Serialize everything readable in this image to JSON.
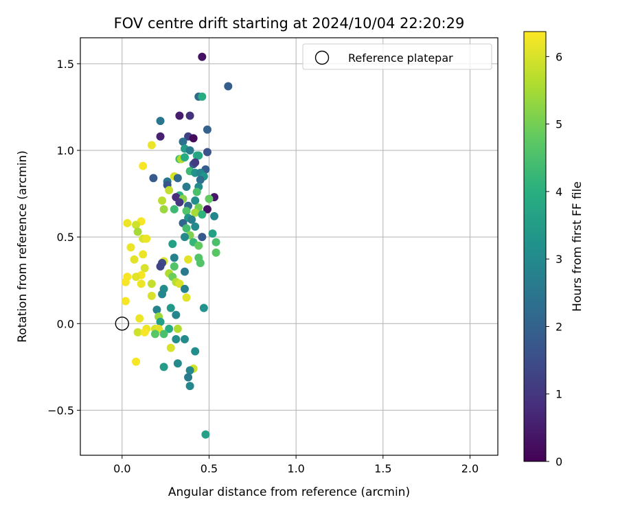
{
  "chart_data": {
    "type": "scatter",
    "title": "FOV centre drift starting at 2024/10/04 22:20:29",
    "xlabel": "Angular distance from reference (arcmin)",
    "ylabel": "Rotation from reference (arcmin)",
    "xlim": [
      -0.24,
      2.16
    ],
    "ylim": [
      -0.76,
      1.65
    ],
    "xticks": [
      0.0,
      0.5,
      1.0,
      1.5,
      2.0
    ],
    "xtick_labels": [
      "0.0",
      "0.5",
      "1.0",
      "1.5",
      "2.0"
    ],
    "yticks": [
      -0.5,
      0.0,
      0.5,
      1.0,
      1.5
    ],
    "ytick_labels": [
      "−0.5",
      "0.0",
      "0.5",
      "1.0",
      "1.5"
    ],
    "grid": true,
    "legend": {
      "placement": "top-right",
      "entries": [
        "Reference platepar"
      ]
    },
    "reference_point": {
      "x": 0.0,
      "y": 0.0,
      "label": "Reference platepar"
    },
    "colorbar": {
      "label": "Hours from first FF file",
      "colormap": "viridis",
      "range": [
        0,
        6.37
      ],
      "ticks": [
        0,
        1,
        2,
        3,
        4,
        5,
        6
      ],
      "tick_labels": [
        "0",
        "1",
        "2",
        "3",
        "4",
        "5",
        "6"
      ]
    },
    "points": [
      {
        "x": 0.46,
        "y": 1.54,
        "h": 0.3
      },
      {
        "x": 0.61,
        "y": 1.37,
        "h": 1.9
      },
      {
        "x": 0.44,
        "y": 1.31,
        "h": 2.2
      },
      {
        "x": 0.46,
        "y": 1.31,
        "h": 3.9
      },
      {
        "x": 0.33,
        "y": 1.2,
        "h": 0.5
      },
      {
        "x": 0.39,
        "y": 1.2,
        "h": 0.9
      },
      {
        "x": 0.22,
        "y": 1.17,
        "h": 2.5
      },
      {
        "x": 0.49,
        "y": 1.12,
        "h": 2.0
      },
      {
        "x": 0.22,
        "y": 1.08,
        "h": 0.6
      },
      {
        "x": 0.38,
        "y": 1.08,
        "h": 1.2
      },
      {
        "x": 0.41,
        "y": 1.07,
        "h": 0.2
      },
      {
        "x": 0.35,
        "y": 1.05,
        "h": 2.4
      },
      {
        "x": 0.17,
        "y": 1.03,
        "h": 6.2
      },
      {
        "x": 0.36,
        "y": 1.01,
        "h": 3.5
      },
      {
        "x": 0.39,
        "y": 1.0,
        "h": 2.6
      },
      {
        "x": 0.49,
        "y": 0.99,
        "h": 1.6
      },
      {
        "x": 0.43,
        "y": 0.97,
        "h": 4.0
      },
      {
        "x": 0.44,
        "y": 0.97,
        "h": 3.7
      },
      {
        "x": 0.33,
        "y": 0.95,
        "h": 4.4
      },
      {
        "x": 0.34,
        "y": 0.95,
        "h": 5.6
      },
      {
        "x": 0.36,
        "y": 0.96,
        "h": 3.9
      },
      {
        "x": 0.41,
        "y": 0.92,
        "h": 1.8
      },
      {
        "x": 0.42,
        "y": 0.93,
        "h": 1.1
      },
      {
        "x": 0.12,
        "y": 0.91,
        "h": 6.3
      },
      {
        "x": 0.48,
        "y": 0.89,
        "h": 1.9
      },
      {
        "x": 0.39,
        "y": 0.88,
        "h": 4.3
      },
      {
        "x": 0.42,
        "y": 0.87,
        "h": 3.2
      },
      {
        "x": 0.45,
        "y": 0.87,
        "h": 2.9
      },
      {
        "x": 0.47,
        "y": 0.85,
        "h": 3.3
      },
      {
        "x": 0.3,
        "y": 0.85,
        "h": 6.0
      },
      {
        "x": 0.32,
        "y": 0.84,
        "h": 2.2
      },
      {
        "x": 0.18,
        "y": 0.84,
        "h": 1.8
      },
      {
        "x": 0.45,
        "y": 0.83,
        "h": 2.3
      },
      {
        "x": 0.26,
        "y": 0.82,
        "h": 2.5
      },
      {
        "x": 0.26,
        "y": 0.8,
        "h": 1.7
      },
      {
        "x": 0.37,
        "y": 0.79,
        "h": 2.6
      },
      {
        "x": 0.44,
        "y": 0.79,
        "h": 3.0
      },
      {
        "x": 0.27,
        "y": 0.77,
        "h": 5.8
      },
      {
        "x": 0.43,
        "y": 0.76,
        "h": 4.5
      },
      {
        "x": 0.33,
        "y": 0.74,
        "h": 4.1
      },
      {
        "x": 0.31,
        "y": 0.73,
        "h": 0.8
      },
      {
        "x": 0.35,
        "y": 0.72,
        "h": 5.2
      },
      {
        "x": 0.53,
        "y": 0.73,
        "h": 0.4
      },
      {
        "x": 0.5,
        "y": 0.72,
        "h": 4.8
      },
      {
        "x": 0.42,
        "y": 0.71,
        "h": 3.1
      },
      {
        "x": 0.23,
        "y": 0.71,
        "h": 5.7
      },
      {
        "x": 0.33,
        "y": 0.7,
        "h": 1.0
      },
      {
        "x": 0.38,
        "y": 0.68,
        "h": 2.1
      },
      {
        "x": 0.44,
        "y": 0.67,
        "h": 5.0
      },
      {
        "x": 0.49,
        "y": 0.66,
        "h": 0.3
      },
      {
        "x": 0.24,
        "y": 0.66,
        "h": 5.4
      },
      {
        "x": 0.3,
        "y": 0.66,
        "h": 4.3
      },
      {
        "x": 0.37,
        "y": 0.65,
        "h": 4.6
      },
      {
        "x": 0.42,
        "y": 0.64,
        "h": 5.5
      },
      {
        "x": 0.46,
        "y": 0.63,
        "h": 4.1
      },
      {
        "x": 0.53,
        "y": 0.62,
        "h": 2.9
      },
      {
        "x": 0.38,
        "y": 0.61,
        "h": 3.3
      },
      {
        "x": 0.4,
        "y": 0.6,
        "h": 2.7
      },
      {
        "x": 0.35,
        "y": 0.58,
        "h": 2.1
      },
      {
        "x": 0.11,
        "y": 0.59,
        "h": 6.3
      },
      {
        "x": 0.03,
        "y": 0.58,
        "h": 6.2
      },
      {
        "x": 0.08,
        "y": 0.57,
        "h": 5.9
      },
      {
        "x": 0.42,
        "y": 0.56,
        "h": 3.0
      },
      {
        "x": 0.37,
        "y": 0.55,
        "h": 4.4
      },
      {
        "x": 0.09,
        "y": 0.53,
        "h": 5.5
      },
      {
        "x": 0.52,
        "y": 0.52,
        "h": 3.6
      },
      {
        "x": 0.39,
        "y": 0.51,
        "h": 5.1
      },
      {
        "x": 0.36,
        "y": 0.5,
        "h": 3.0
      },
      {
        "x": 0.46,
        "y": 0.5,
        "h": 1.8
      },
      {
        "x": 0.12,
        "y": 0.49,
        "h": 6.0
      },
      {
        "x": 0.14,
        "y": 0.49,
        "h": 6.2
      },
      {
        "x": 0.41,
        "y": 0.47,
        "h": 4.2
      },
      {
        "x": 0.54,
        "y": 0.47,
        "h": 4.5
      },
      {
        "x": 0.29,
        "y": 0.46,
        "h": 3.6
      },
      {
        "x": 0.44,
        "y": 0.45,
        "h": 4.8
      },
      {
        "x": 0.05,
        "y": 0.44,
        "h": 6.2
      },
      {
        "x": 0.54,
        "y": 0.41,
        "h": 4.7
      },
      {
        "x": 0.12,
        "y": 0.4,
        "h": 6.2
      },
      {
        "x": 0.3,
        "y": 0.38,
        "h": 2.8
      },
      {
        "x": 0.44,
        "y": 0.38,
        "h": 4.6
      },
      {
        "x": 0.07,
        "y": 0.37,
        "h": 6.1
      },
      {
        "x": 0.38,
        "y": 0.37,
        "h": 6.1
      },
      {
        "x": 0.24,
        "y": 0.36,
        "h": 6.0
      },
      {
        "x": 0.23,
        "y": 0.35,
        "h": 1.4
      },
      {
        "x": 0.45,
        "y": 0.35,
        "h": 4.6
      },
      {
        "x": 0.3,
        "y": 0.33,
        "h": 4.6
      },
      {
        "x": 0.22,
        "y": 0.33,
        "h": 1.3
      },
      {
        "x": 0.13,
        "y": 0.32,
        "h": 6.0
      },
      {
        "x": 0.36,
        "y": 0.3,
        "h": 2.6
      },
      {
        "x": 0.27,
        "y": 0.29,
        "h": 5.6
      },
      {
        "x": 0.11,
        "y": 0.28,
        "h": 6.3
      },
      {
        "x": 0.08,
        "y": 0.27,
        "h": 6.1
      },
      {
        "x": 0.03,
        "y": 0.27,
        "h": 6.3
      },
      {
        "x": 0.29,
        "y": 0.27,
        "h": 4.9
      },
      {
        "x": 0.31,
        "y": 0.24,
        "h": 5.7
      },
      {
        "x": 0.02,
        "y": 0.24,
        "h": 6.3
      },
      {
        "x": 0.11,
        "y": 0.23,
        "h": 6.2
      },
      {
        "x": 0.17,
        "y": 0.23,
        "h": 5.8
      },
      {
        "x": 0.33,
        "y": 0.23,
        "h": 6.0
      },
      {
        "x": 0.24,
        "y": 0.2,
        "h": 3.1
      },
      {
        "x": 0.36,
        "y": 0.2,
        "h": 2.8
      },
      {
        "x": 0.23,
        "y": 0.17,
        "h": 2.9
      },
      {
        "x": 0.17,
        "y": 0.16,
        "h": 6.0
      },
      {
        "x": 0.37,
        "y": 0.15,
        "h": 6.1
      },
      {
        "x": 0.02,
        "y": 0.13,
        "h": 6.3
      },
      {
        "x": 0.47,
        "y": 0.09,
        "h": 3.2
      },
      {
        "x": 0.28,
        "y": 0.09,
        "h": 3.4
      },
      {
        "x": 0.2,
        "y": 0.08,
        "h": 2.8
      },
      {
        "x": 0.31,
        "y": 0.05,
        "h": 2.9
      },
      {
        "x": 0.21,
        "y": 0.04,
        "h": 5.4
      },
      {
        "x": 0.1,
        "y": 0.03,
        "h": 6.2
      },
      {
        "x": 0.22,
        "y": 0.01,
        "h": 3.6
      },
      {
        "x": 0.14,
        "y": -0.03,
        "h": 6.2
      },
      {
        "x": 0.19,
        "y": -0.03,
        "h": 6.0
      },
      {
        "x": 0.21,
        "y": -0.03,
        "h": 6.1
      },
      {
        "x": 0.27,
        "y": -0.03,
        "h": 3.9
      },
      {
        "x": 0.32,
        "y": -0.03,
        "h": 5.6
      },
      {
        "x": 0.09,
        "y": -0.05,
        "h": 5.9
      },
      {
        "x": 0.13,
        "y": -0.05,
        "h": 6.3
      },
      {
        "x": 0.24,
        "y": -0.06,
        "h": 4.5
      },
      {
        "x": 0.19,
        "y": -0.06,
        "h": 4.7
      },
      {
        "x": 0.31,
        "y": -0.09,
        "h": 3.1
      },
      {
        "x": 0.36,
        "y": -0.09,
        "h": 3.0
      },
      {
        "x": 0.28,
        "y": -0.14,
        "h": 6.0
      },
      {
        "x": 0.42,
        "y": -0.16,
        "h": 3.1
      },
      {
        "x": 0.08,
        "y": -0.22,
        "h": 6.3
      },
      {
        "x": 0.32,
        "y": -0.23,
        "h": 3.0
      },
      {
        "x": 0.24,
        "y": -0.25,
        "h": 3.5
      },
      {
        "x": 0.41,
        "y": -0.26,
        "h": 5.9
      },
      {
        "x": 0.39,
        "y": -0.27,
        "h": 2.9
      },
      {
        "x": 0.38,
        "y": -0.31,
        "h": 2.6
      },
      {
        "x": 0.39,
        "y": -0.36,
        "h": 2.9
      },
      {
        "x": 0.48,
        "y": -0.64,
        "h": 3.6
      }
    ]
  }
}
